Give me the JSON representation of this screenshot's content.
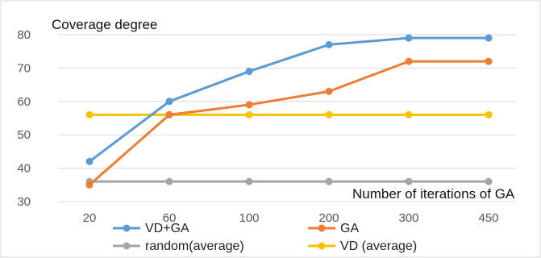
{
  "chart_data": {
    "type": "line",
    "y_axis_title": "Coverage degree",
    "x_axis_title": "Number of iterations of GA",
    "categories": [
      "20",
      "60",
      "100",
      "200",
      "300",
      "450"
    ],
    "ylim": [
      30,
      80
    ],
    "y_ticks": [
      30,
      40,
      50,
      60,
      70,
      80
    ],
    "grid": "horizontal",
    "legend_position": "bottom",
    "series": [
      {
        "name": "VD+GA",
        "color": "#5b9bd5",
        "values": [
          42,
          60,
          69,
          77,
          79,
          79
        ]
      },
      {
        "name": "GA",
        "color": "#ed7d31",
        "values": [
          35,
          56,
          59,
          63,
          72,
          72
        ]
      },
      {
        "name": "random(average)",
        "color": "#a5a5a5",
        "values": [
          36,
          36,
          36,
          36,
          36,
          36
        ]
      },
      {
        "name": "VD (average)",
        "color": "#ffc000",
        "values": [
          56,
          56,
          56,
          56,
          56,
          56
        ]
      }
    ]
  }
}
